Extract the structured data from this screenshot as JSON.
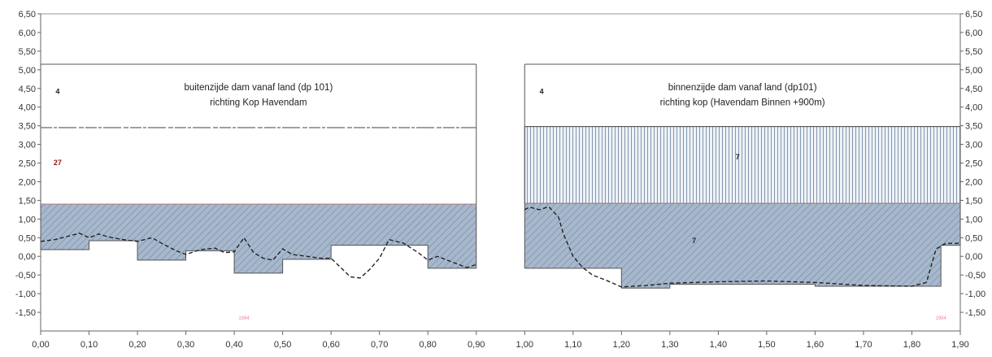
{
  "chart_data": {
    "type": "area",
    "xlim": [
      0,
      1.9
    ],
    "ylim": [
      -2.0,
      6.5
    ],
    "x_ticks": [
      "0,00",
      "0,10",
      "0,20",
      "0,30",
      "0,40",
      "0,50",
      "0,60",
      "0,70",
      "0,80",
      "0,90",
      "1,00",
      "1,10",
      "1,20",
      "1,30",
      "1,40",
      "1,50",
      "1,60",
      "1,70",
      "1,80",
      "1,90"
    ],
    "y_ticks": [
      "6,50",
      "6,00",
      "5,50",
      "5,00",
      "4,50",
      "4,00",
      "3,50",
      "3,00",
      "2,50",
      "2,00",
      "1,50",
      "1,00",
      "0,50",
      "0,00",
      "-0,50",
      "-1,00",
      "-1,50"
    ],
    "grid": false,
    "panels": [
      {
        "title_line1": "buitenzijde dam vanaf land (dp 101)",
        "title_line2": "richting Kop Havendam",
        "x_range": [
          0.0,
          0.9
        ],
        "top": 5.15,
        "upper_boundary": 3.45,
        "upper_boundary_style": "broken",
        "zone_top": 1.4,
        "zone_labels": [
          {
            "text": "4",
            "x": 0.035,
            "y": 4.35,
            "color": "#222222"
          },
          {
            "text": "27",
            "x": 0.035,
            "y": 2.45,
            "color": "#8b1a1a"
          }
        ],
        "footnote": "1994",
        "footnote_x": 0.42,
        "footnote_y": -1.7,
        "bottom_step": {
          "x": [
            0.0,
            0.1,
            0.1,
            0.2,
            0.2,
            0.3,
            0.3,
            0.4,
            0.4,
            0.5,
            0.5,
            0.6,
            0.6,
            0.8,
            0.8,
            0.9
          ],
          "y": [
            0.18,
            0.18,
            0.42,
            0.42,
            -0.1,
            -0.1,
            0.15,
            0.15,
            -0.45,
            -0.45,
            -0.08,
            -0.08,
            0.3,
            0.3,
            -0.32,
            -0.32
          ]
        },
        "profile": {
          "x": [
            0.0,
            0.03,
            0.06,
            0.08,
            0.1,
            0.12,
            0.14,
            0.17,
            0.2,
            0.23,
            0.25,
            0.28,
            0.3,
            0.33,
            0.36,
            0.38,
            0.4,
            0.42,
            0.44,
            0.46,
            0.48,
            0.5,
            0.52,
            0.55,
            0.58,
            0.6,
            0.62,
            0.64,
            0.66,
            0.68,
            0.7,
            0.72,
            0.75,
            0.78,
            0.8,
            0.82,
            0.85,
            0.88,
            0.9
          ],
          "y": [
            0.4,
            0.45,
            0.55,
            0.62,
            0.5,
            0.6,
            0.52,
            0.45,
            0.4,
            0.5,
            0.35,
            0.15,
            0.05,
            0.18,
            0.22,
            0.1,
            0.12,
            0.5,
            0.1,
            -0.05,
            -0.1,
            0.2,
            0.05,
            0.0,
            -0.05,
            -0.05,
            -0.3,
            -0.55,
            -0.58,
            -0.35,
            -0.05,
            0.45,
            0.35,
            0.1,
            -0.1,
            0.0,
            -0.15,
            -0.3,
            -0.22
          ]
        }
      },
      {
        "title_line1": "binnenzijde dam vanaf land (dp101)",
        "title_line2": "richting kop (Havendam Binnen +900m)",
        "x_range": [
          1.0,
          1.9
        ],
        "top": 5.15,
        "upper_boundary": 3.48,
        "upper_boundary_style": "solid",
        "zone_top": 1.42,
        "zone_labels": [
          {
            "text": "4",
            "x": 1.035,
            "y": 4.35,
            "color": "#222222"
          },
          {
            "text": "7",
            "x": 1.44,
            "y": 2.6,
            "color": "#222222"
          },
          {
            "text": "7",
            "x": 1.35,
            "y": 0.35,
            "color": "#222222"
          }
        ],
        "footnote": "1994",
        "footnote_x": 1.86,
        "footnote_y": -1.7,
        "bottom_step": {
          "x": [
            1.0,
            1.2,
            1.2,
            1.3,
            1.3,
            1.6,
            1.6,
            1.86,
            1.86,
            1.9
          ],
          "y": [
            -0.32,
            -0.32,
            -0.85,
            -0.85,
            -0.75,
            -0.75,
            -0.8,
            -0.8,
            0.3,
            0.3
          ]
        },
        "profile": {
          "x": [
            1.0,
            1.01,
            1.03,
            1.05,
            1.07,
            1.08,
            1.1,
            1.12,
            1.14,
            1.17,
            1.2,
            1.25,
            1.3,
            1.35,
            1.4,
            1.5,
            1.6,
            1.7,
            1.8,
            1.83,
            1.85,
            1.87,
            1.9
          ],
          "y": [
            1.25,
            1.32,
            1.25,
            1.33,
            1.05,
            0.6,
            0.0,
            -0.3,
            -0.5,
            -0.65,
            -0.82,
            -0.78,
            -0.72,
            -0.7,
            -0.68,
            -0.66,
            -0.7,
            -0.78,
            -0.8,
            -0.7,
            0.2,
            0.35,
            0.35
          ]
        }
      }
    ]
  },
  "colors": {
    "zone_fill": "#a7b8cc",
    "zone_hatch": "#6f86a3",
    "vertical_hatch": "#8397b0",
    "outline": "#555555",
    "profile": "#222222",
    "zone_top_line": "#b07575"
  }
}
